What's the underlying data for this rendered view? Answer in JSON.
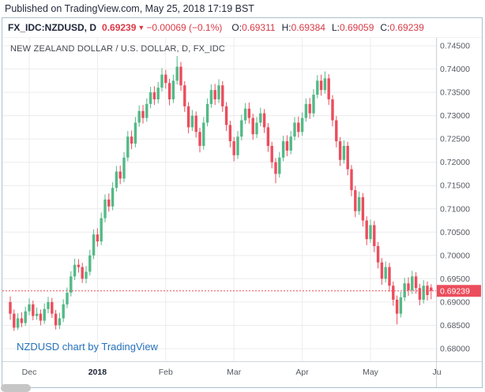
{
  "page": {
    "published_line": "Published on TradingView.com, May 25, 2018 17:19 BST"
  },
  "header": {
    "symbol": "FX_IDC:NZDUSD, D",
    "last_price": "0.69239",
    "direction_icon": "▼",
    "change": "−0.00069 (−0.1%)",
    "open_label": "O:",
    "open": "0.69311",
    "high_label": "H:",
    "high": "0.69384",
    "low_label": "L:",
    "low": "0.69059",
    "close_label": "C:",
    "close": "0.69239"
  },
  "chart": {
    "title": "NEW ZEALAND DOLLAR / U.S. DOLLAR, D, FX_IDC",
    "attribution": "NZDUSD chart by TradingView",
    "price_tag": "0.69239"
  },
  "theme": {
    "up": "#53B987",
    "down": "#EB4D5C",
    "grid": "#ececec",
    "axis_text": "#555861",
    "axis_text_strong": "#1c2333",
    "axis_line": "#cfd6dc",
    "tag_bg": "#EB4D5C",
    "tag_text": "#ffffff",
    "header_red": "#d93a47",
    "border": "#abc0cc",
    "link_blue": "#2673bb"
  },
  "chart_data": {
    "type": "candlestick",
    "title": "NEW ZEALAND DOLLAR / U.S. DOLLAR, D, FX_IDC",
    "symbol": "NZDUSD",
    "timeframe": "D",
    "y_min": 0.68,
    "y_max": 0.745,
    "y_step": 0.005,
    "y_ticks": [
      0.745,
      0.74,
      0.735,
      0.73,
      0.725,
      0.72,
      0.715,
      0.71,
      0.705,
      0.7,
      0.695,
      0.69,
      0.685,
      0.68
    ],
    "x_ticks": [
      {
        "label": "Dec",
        "i": 5,
        "bold": false
      },
      {
        "label": "2018",
        "i": 23,
        "bold": true
      },
      {
        "label": "Feb",
        "i": 41,
        "bold": false
      },
      {
        "label": "Mar",
        "i": 59,
        "bold": false
      },
      {
        "label": "Apr",
        "i": 77,
        "bold": false
      },
      {
        "label": "May",
        "i": 95,
        "bold": false
      },
      {
        "label": "Ju",
        "i": 112.5,
        "bold": false
      }
    ],
    "last_price": 0.69239,
    "ohlc_today": {
      "open": 0.69311,
      "high": 0.69384,
      "low": 0.69059,
      "close": 0.69239
    },
    "candles": [
      [
        0.69,
        0.6912,
        0.6862,
        0.6875
      ],
      [
        0.6875,
        0.6884,
        0.6838,
        0.6845
      ],
      [
        0.6845,
        0.6876,
        0.684,
        0.6865
      ],
      [
        0.6865,
        0.6878,
        0.6846,
        0.6855
      ],
      [
        0.6855,
        0.689,
        0.6849,
        0.688
      ],
      [
        0.688,
        0.6908,
        0.6872,
        0.6895
      ],
      [
        0.6895,
        0.6903,
        0.6861,
        0.687
      ],
      [
        0.687,
        0.6888,
        0.6862,
        0.6875
      ],
      [
        0.6875,
        0.6884,
        0.685,
        0.686
      ],
      [
        0.686,
        0.6897,
        0.6853,
        0.6885
      ],
      [
        0.6885,
        0.6911,
        0.6876,
        0.69
      ],
      [
        0.69,
        0.6909,
        0.6866,
        0.6875
      ],
      [
        0.6875,
        0.6883,
        0.6841,
        0.685
      ],
      [
        0.685,
        0.6877,
        0.6842,
        0.6865
      ],
      [
        0.6865,
        0.6906,
        0.6857,
        0.6895
      ],
      [
        0.6895,
        0.6931,
        0.6887,
        0.692
      ],
      [
        0.692,
        0.6966,
        0.6912,
        0.6955
      ],
      [
        0.6955,
        0.6993,
        0.6947,
        0.698
      ],
      [
        0.698,
        0.6992,
        0.6963,
        0.6975
      ],
      [
        0.6975,
        0.6984,
        0.6941,
        0.695
      ],
      [
        0.695,
        0.6977,
        0.694,
        0.6965
      ],
      [
        0.6965,
        0.7012,
        0.6957,
        0.7
      ],
      [
        0.7,
        0.7056,
        0.6992,
        0.7045
      ],
      [
        0.7045,
        0.7058,
        0.7019,
        0.703
      ],
      [
        0.703,
        0.7092,
        0.7022,
        0.708
      ],
      [
        0.708,
        0.7131,
        0.7071,
        0.712
      ],
      [
        0.712,
        0.7133,
        0.7094,
        0.7105
      ],
      [
        0.7105,
        0.7157,
        0.7097,
        0.7145
      ],
      [
        0.7145,
        0.7192,
        0.7137,
        0.718
      ],
      [
        0.718,
        0.7193,
        0.7153,
        0.7165
      ],
      [
        0.7165,
        0.7222,
        0.7157,
        0.721
      ],
      [
        0.721,
        0.7267,
        0.7202,
        0.7255
      ],
      [
        0.7255,
        0.7268,
        0.7228,
        0.724
      ],
      [
        0.724,
        0.7297,
        0.7232,
        0.7285
      ],
      [
        0.7285,
        0.7322,
        0.7276,
        0.731
      ],
      [
        0.731,
        0.7323,
        0.7283,
        0.7295
      ],
      [
        0.7295,
        0.7337,
        0.7287,
        0.7325
      ],
      [
        0.7325,
        0.7362,
        0.7316,
        0.735
      ],
      [
        0.735,
        0.7363,
        0.7323,
        0.7335
      ],
      [
        0.7335,
        0.7372,
        0.7326,
        0.736
      ],
      [
        0.736,
        0.7402,
        0.7352,
        0.7388
      ],
      [
        0.7388,
        0.7398,
        0.7358,
        0.737
      ],
      [
        0.737,
        0.7379,
        0.7322,
        0.7335
      ],
      [
        0.7335,
        0.7388,
        0.7327,
        0.7375
      ],
      [
        0.7375,
        0.7428,
        0.7367,
        0.7405
      ],
      [
        0.7405,
        0.7415,
        0.7353,
        0.7365
      ],
      [
        0.7365,
        0.7374,
        0.7308,
        0.732
      ],
      [
        0.732,
        0.7329,
        0.7262,
        0.7275
      ],
      [
        0.7275,
        0.7312,
        0.7267,
        0.73
      ],
      [
        0.73,
        0.7309,
        0.7253,
        0.7265
      ],
      [
        0.7265,
        0.7274,
        0.7221,
        0.7235
      ],
      [
        0.7235,
        0.7297,
        0.7227,
        0.7285
      ],
      [
        0.7285,
        0.7337,
        0.7277,
        0.7325
      ],
      [
        0.7325,
        0.7367,
        0.7317,
        0.7355
      ],
      [
        0.7355,
        0.7368,
        0.7323,
        0.7335
      ],
      [
        0.7335,
        0.7378,
        0.7327,
        0.7365
      ],
      [
        0.7365,
        0.7374,
        0.7308,
        0.732
      ],
      [
        0.732,
        0.7329,
        0.7267,
        0.728
      ],
      [
        0.728,
        0.7289,
        0.7232,
        0.7245
      ],
      [
        0.7245,
        0.7254,
        0.7202,
        0.7215
      ],
      [
        0.7215,
        0.7267,
        0.7207,
        0.7255
      ],
      [
        0.7255,
        0.7302,
        0.7247,
        0.729
      ],
      [
        0.729,
        0.7327,
        0.7282,
        0.7315
      ],
      [
        0.7315,
        0.7328,
        0.7283,
        0.7295
      ],
      [
        0.7295,
        0.7304,
        0.7248,
        0.726
      ],
      [
        0.726,
        0.7297,
        0.7252,
        0.7285
      ],
      [
        0.7285,
        0.7317,
        0.7277,
        0.7305
      ],
      [
        0.7305,
        0.7314,
        0.7263,
        0.7275
      ],
      [
        0.7275,
        0.7284,
        0.7222,
        0.7235
      ],
      [
        0.7235,
        0.7244,
        0.7187,
        0.72
      ],
      [
        0.72,
        0.7209,
        0.7155,
        0.7175
      ],
      [
        0.7175,
        0.7222,
        0.7167,
        0.721
      ],
      [
        0.721,
        0.7257,
        0.7202,
        0.7245
      ],
      [
        0.7245,
        0.7258,
        0.7213,
        0.7225
      ],
      [
        0.7225,
        0.7267,
        0.7217,
        0.7255
      ],
      [
        0.7255,
        0.7297,
        0.7247,
        0.7285
      ],
      [
        0.7285,
        0.7298,
        0.7253,
        0.7265
      ],
      [
        0.7265,
        0.7307,
        0.7257,
        0.7295
      ],
      [
        0.7295,
        0.7337,
        0.7287,
        0.7325
      ],
      [
        0.7325,
        0.7338,
        0.7293,
        0.7305
      ],
      [
        0.7305,
        0.7357,
        0.7297,
        0.7345
      ],
      [
        0.7345,
        0.7387,
        0.7337,
        0.7375
      ],
      [
        0.7375,
        0.7388,
        0.7343,
        0.7355
      ],
      [
        0.7355,
        0.7395,
        0.7347,
        0.738
      ],
      [
        0.738,
        0.7389,
        0.7323,
        0.7335
      ],
      [
        0.7335,
        0.7344,
        0.7277,
        0.729
      ],
      [
        0.729,
        0.7299,
        0.7232,
        0.7245
      ],
      [
        0.7245,
        0.7254,
        0.7192,
        0.7205
      ],
      [
        0.7205,
        0.7247,
        0.7197,
        0.7235
      ],
      [
        0.7235,
        0.7244,
        0.7172,
        0.7185
      ],
      [
        0.7185,
        0.7194,
        0.7127,
        0.714
      ],
      [
        0.714,
        0.7149,
        0.7082,
        0.7095
      ],
      [
        0.7095,
        0.7137,
        0.7087,
        0.7125
      ],
      [
        0.7125,
        0.7134,
        0.7062,
        0.7075
      ],
      [
        0.7075,
        0.7084,
        0.7022,
        0.7035
      ],
      [
        0.7035,
        0.7077,
        0.7027,
        0.7065
      ],
      [
        0.7065,
        0.7074,
        0.7007,
        0.702
      ],
      [
        0.702,
        0.7029,
        0.6972,
        0.6985
      ],
      [
        0.6985,
        0.6994,
        0.6937,
        0.695
      ],
      [
        0.695,
        0.6987,
        0.6942,
        0.6975
      ],
      [
        0.6975,
        0.6984,
        0.6922,
        0.6935
      ],
      [
        0.6935,
        0.6944,
        0.6892,
        0.6905
      ],
      [
        0.6905,
        0.6914,
        0.6852,
        0.6875
      ],
      [
        0.6875,
        0.6922,
        0.6867,
        0.691
      ],
      [
        0.691,
        0.6952,
        0.6902,
        0.694
      ],
      [
        0.694,
        0.6953,
        0.6913,
        0.6925
      ],
      [
        0.6925,
        0.6967,
        0.6917,
        0.6955
      ],
      [
        0.6955,
        0.6964,
        0.6918,
        0.693
      ],
      [
        0.693,
        0.6939,
        0.6893,
        0.6905
      ],
      [
        0.6905,
        0.6947,
        0.6897,
        0.6935
      ],
      [
        0.6935,
        0.6944,
        0.6903,
        0.6915
      ],
      [
        0.69311,
        0.69384,
        0.69059,
        0.69239
      ]
    ]
  }
}
